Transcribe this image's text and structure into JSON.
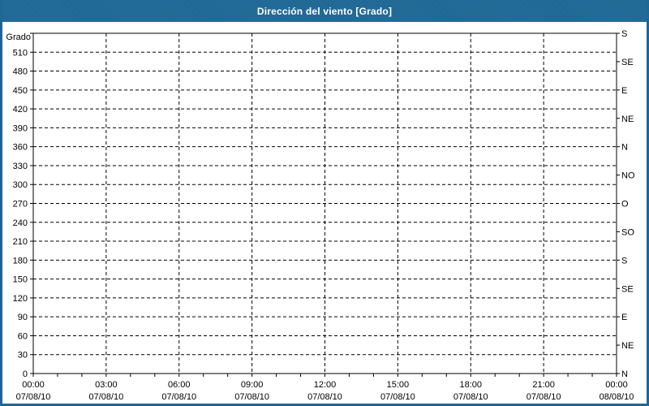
{
  "window": {
    "title": "Dirección del viento [Grado]",
    "accent_color": "#1e6795"
  },
  "chart_data": {
    "type": "line",
    "title": "Dirección del viento [Grado]",
    "subtitle": "",
    "xlabel": "",
    "ylabel": "Grado",
    "grid": "dashed",
    "legend": "none",
    "series": [],
    "y_axis": {
      "min": 0,
      "max": 540,
      "grid_step": 30,
      "tick_labels": [
        "0",
        "30",
        "60",
        "90",
        "120",
        "150",
        "180",
        "210",
        "240",
        "270",
        "300",
        "330",
        "360",
        "390",
        "420",
        "450",
        "480",
        "510"
      ]
    },
    "right_axis": {
      "step_deg": 45,
      "labels_bottom_to_top": [
        "N",
        "NE",
        "E",
        "SE",
        "S",
        "SO",
        "O",
        "NO",
        "N",
        "NE",
        "E",
        "SE",
        "S"
      ]
    },
    "x_axis": {
      "span_hours": 24,
      "minor_tick_step_hours": 1,
      "major_step_hours": 3,
      "ticks": [
        {
          "time": "00:00",
          "date": "07/08/10"
        },
        {
          "time": "03:00",
          "date": "07/08/10"
        },
        {
          "time": "06:00",
          "date": "07/08/10"
        },
        {
          "time": "09:00",
          "date": "07/08/10"
        },
        {
          "time": "12:00",
          "date": "07/08/10"
        },
        {
          "time": "15:00",
          "date": "07/08/10"
        },
        {
          "time": "18:00",
          "date": "07/08/10"
        },
        {
          "time": "21:00",
          "date": "07/08/10"
        },
        {
          "time": "00:00",
          "date": "08/08/10"
        }
      ]
    }
  }
}
